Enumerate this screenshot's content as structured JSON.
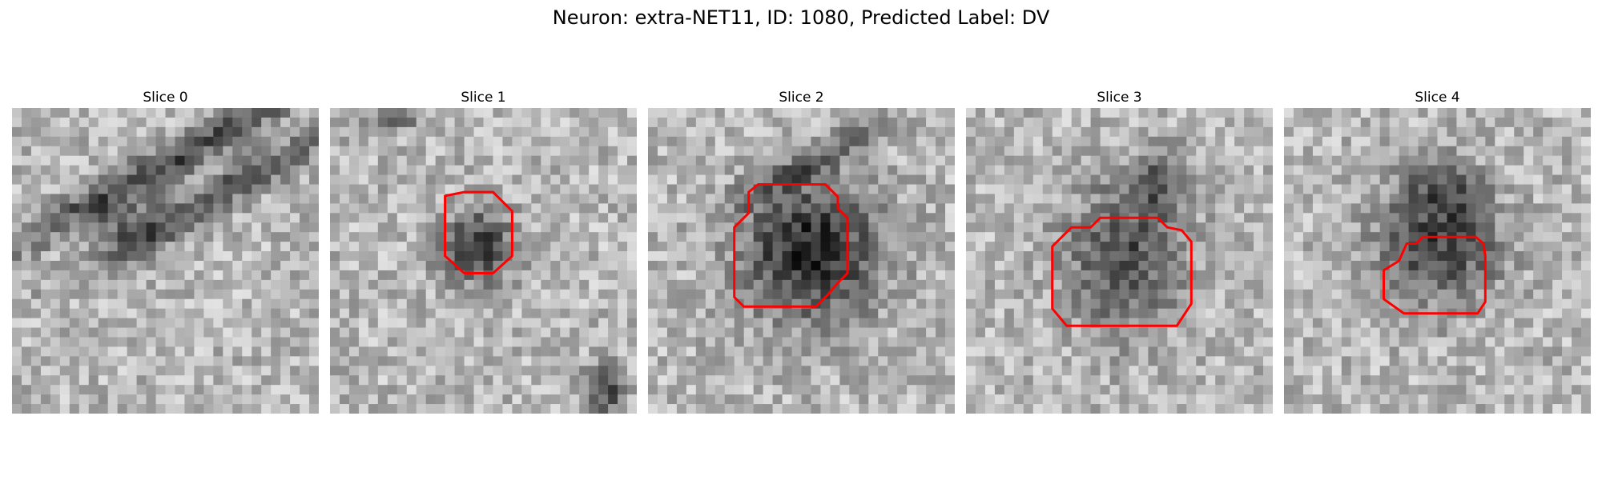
{
  "figure": {
    "title": "Neuron: extra-NET11, ID: 1080, Predicted Label: DV"
  },
  "panels": [
    {
      "title": "Slice 0",
      "has_outline": false
    },
    {
      "title": "Slice 1",
      "has_outline": true
    },
    {
      "title": "Slice 2",
      "has_outline": true
    },
    {
      "title": "Slice 3",
      "has_outline": true
    },
    {
      "title": "Slice 4",
      "has_outline": true
    }
  ],
  "colors": {
    "outline": "#ff0000"
  }
}
